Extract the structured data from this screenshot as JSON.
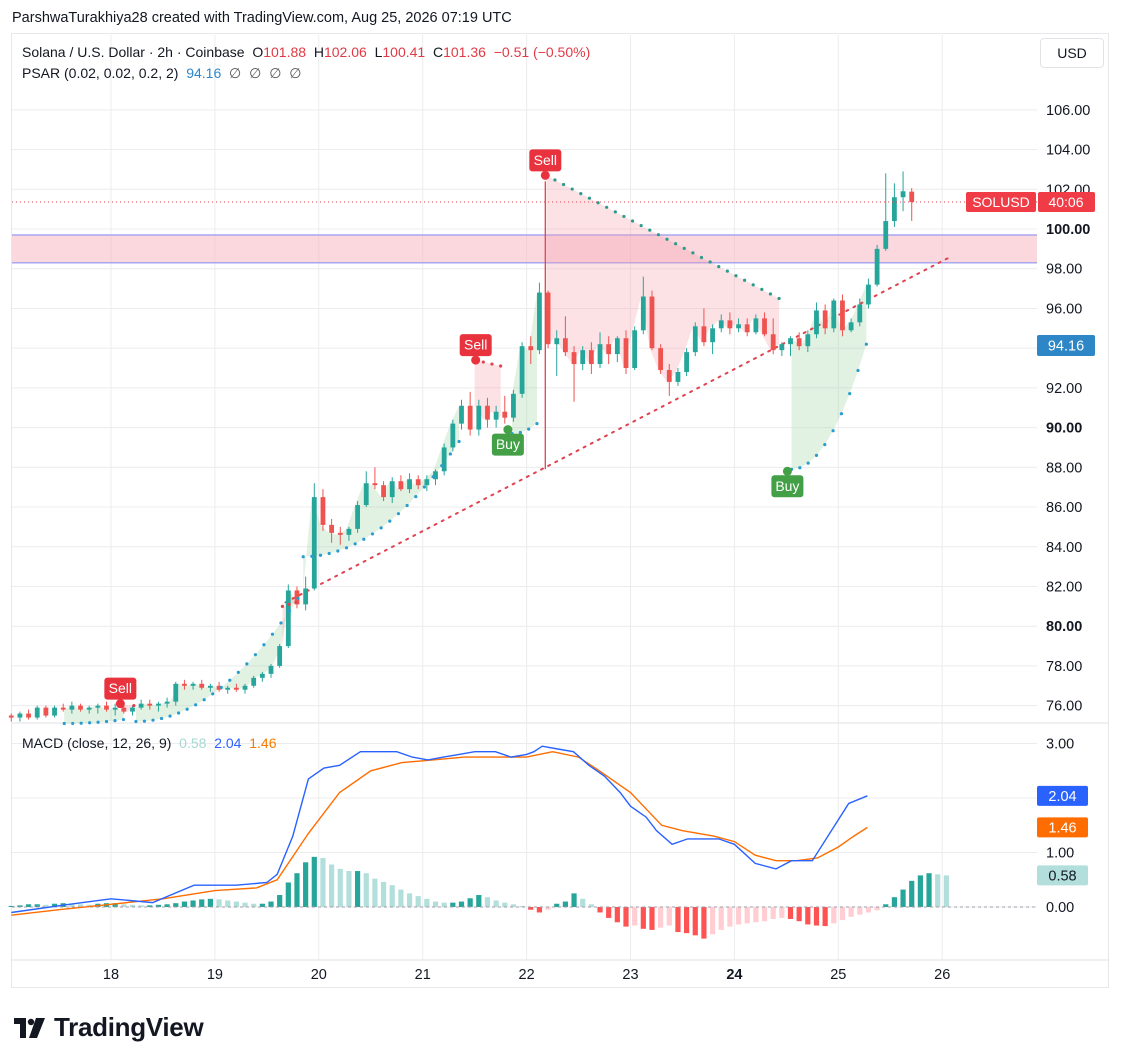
{
  "header": {
    "author": "ParshwaTurakhiya28",
    "created_text": "created with TradingView.com,",
    "timestamp": "Aug 25, 2026 07:19 UTC"
  },
  "legend": {
    "symbol": "Solana / U.S. Dollar · 2h · Coinbase",
    "o_label": "O",
    "o": "101.88",
    "h_label": "H",
    "h": "102.06",
    "l_label": "L",
    "l": "100.41",
    "c_label": "C",
    "c": "101.36",
    "change": "−0.51 (−0.50%)",
    "psar_label": "PSAR (0.02, 0.02, 0.2, 2)",
    "psar_value": "94.16",
    "psar_na": "∅ ∅ ∅ ∅",
    "macd_label": "MACD (close, 12, 26, 9)",
    "macd_hist": "0.58",
    "macd_line": "2.04",
    "macd_signal": "1.46"
  },
  "currency": "USD",
  "price_tag": {
    "symbol": "SOLUSD",
    "countdown": "40:06"
  },
  "psar_tag": "94.16",
  "macd_tags": {
    "macd": "2.04",
    "signal": "1.46",
    "hist": "0.58"
  },
  "brand": {
    "name": "TradingView",
    "logo_icon": "tradingview-logo-icon"
  },
  "colors": {
    "up": "#26a69a",
    "down": "#ef5350",
    "macd": "#2962ff",
    "signal": "#ff6d00",
    "psar_up": "#2a9dd0",
    "psar_down": "#e03a45",
    "zone": "#f7b6c2"
  },
  "chart_data": [
    {
      "type": "candlestick",
      "title": "Solana / U.S. Dollar · 2h · Coinbase",
      "x_ticks": [
        "18",
        "19",
        "20",
        "21",
        "22",
        "23",
        "24",
        "25",
        "26"
      ],
      "bold_x_ticks": [
        "24"
      ],
      "y_ticks": [
        "76.00",
        "78.00",
        "80.00",
        "82.00",
        "84.00",
        "86.00",
        "88.00",
        "90.00",
        "92.00",
        "94.00",
        "96.00",
        "98.00",
        "100.00",
        "102.00",
        "104.00",
        "106.00"
      ],
      "bold_y_ticks": [
        "80.00",
        "90.00",
        "100.00"
      ],
      "ylim": [
        75.3,
        107.3
      ],
      "xlim": [
        17.04,
        27.7
      ],
      "last_price": 101.36,
      "resistance_zone": [
        98.3,
        99.7
      ],
      "trendline": {
        "from": [
          19.68,
          81.2
        ],
        "to": [
          26.08,
          98.6
        ]
      },
      "candles": [
        [
          75.5,
          75.6,
          75.2,
          75.4
        ],
        [
          75.4,
          75.7,
          75.2,
          75.6
        ],
        [
          75.6,
          75.8,
          75.3,
          75.4
        ],
        [
          75.4,
          76.0,
          75.3,
          75.9
        ],
        [
          75.9,
          76.0,
          75.4,
          75.5
        ],
        [
          75.5,
          76.0,
          75.4,
          75.9
        ],
        [
          75.9,
          76.1,
          75.7,
          75.8
        ],
        [
          75.8,
          76.2,
          75.6,
          76.0
        ],
        [
          76.0,
          76.1,
          75.7,
          75.8
        ],
        [
          75.8,
          76.0,
          75.6,
          75.9
        ],
        [
          75.9,
          76.1,
          75.6,
          76.0
        ],
        [
          76.0,
          76.2,
          75.7,
          75.8
        ],
        [
          75.8,
          76.1,
          75.5,
          75.9
        ],
        [
          75.9,
          76.1,
          75.6,
          75.7
        ],
        [
          75.7,
          76.0,
          75.5,
          75.9
        ],
        [
          75.9,
          76.3,
          75.8,
          76.1
        ],
        [
          76.1,
          76.3,
          75.8,
          76.0
        ],
        [
          76.0,
          76.2,
          75.7,
          76.1
        ],
        [
          76.1,
          76.4,
          75.9,
          76.2
        ],
        [
          76.2,
          77.2,
          76.0,
          77.1
        ],
        [
          77.1,
          77.3,
          76.8,
          77.0
        ],
        [
          77.0,
          77.2,
          76.8,
          77.1
        ],
        [
          77.1,
          77.3,
          76.8,
          76.9
        ],
        [
          76.9,
          77.1,
          76.7,
          77.0
        ],
        [
          77.0,
          77.2,
          76.7,
          76.8
        ],
        [
          76.8,
          77.0,
          76.6,
          76.9
        ],
        [
          76.9,
          77.1,
          76.7,
          76.8
        ],
        [
          76.8,
          77.1,
          76.6,
          77.0
        ],
        [
          77.0,
          77.5,
          76.9,
          77.4
        ],
        [
          77.4,
          77.7,
          77.2,
          77.6
        ],
        [
          77.6,
          78.1,
          77.4,
          78.0
        ],
        [
          78.0,
          79.1,
          77.9,
          79.0
        ],
        [
          79.0,
          82.1,
          78.9,
          81.8
        ],
        [
          81.8,
          82.0,
          80.9,
          81.1
        ],
        [
          81.1,
          82.5,
          80.8,
          81.9
        ],
        [
          81.9,
          87.2,
          81.8,
          86.5
        ],
        [
          86.5,
          86.9,
          84.8,
          85.1
        ],
        [
          85.1,
          85.4,
          84.2,
          84.7
        ],
        [
          84.7,
          85.0,
          84.1,
          84.6
        ],
        [
          84.6,
          85.0,
          84.3,
          84.9
        ],
        [
          84.9,
          86.3,
          84.7,
          86.1
        ],
        [
          86.1,
          87.8,
          86.0,
          87.2
        ],
        [
          87.2,
          88.0,
          86.9,
          87.1
        ],
        [
          87.1,
          87.3,
          86.3,
          86.5
        ],
        [
          86.5,
          87.5,
          86.2,
          87.3
        ],
        [
          87.3,
          87.6,
          86.8,
          86.9
        ],
        [
          86.9,
          87.7,
          86.7,
          87.4
        ],
        [
          87.4,
          87.6,
          86.9,
          87.1
        ],
        [
          87.1,
          87.6,
          86.8,
          87.4
        ],
        [
          87.4,
          87.9,
          87.1,
          87.8
        ],
        [
          87.8,
          89.2,
          87.6,
          89.0
        ],
        [
          89.0,
          90.4,
          88.8,
          90.2
        ],
        [
          90.2,
          91.4,
          89.9,
          91.1
        ],
        [
          91.1,
          91.8,
          89.6,
          89.9
        ],
        [
          89.9,
          91.4,
          89.6,
          91.1
        ],
        [
          91.1,
          91.5,
          90.0,
          90.4
        ],
        [
          90.4,
          91.1,
          90.0,
          90.8
        ],
        [
          90.8,
          91.6,
          90.2,
          90.5
        ],
        [
          90.5,
          91.9,
          90.3,
          91.7
        ],
        [
          91.7,
          94.3,
          91.5,
          94.1
        ],
        [
          94.1,
          94.6,
          93.2,
          93.9
        ],
        [
          93.9,
          97.3,
          93.7,
          96.8
        ],
        [
          96.8,
          96.9,
          94.0,
          94.2
        ],
        [
          94.2,
          94.9,
          92.6,
          94.5
        ],
        [
          94.5,
          95.6,
          93.6,
          93.8
        ],
        [
          93.8,
          94.1,
          91.3,
          93.2
        ],
        [
          93.2,
          94.1,
          92.9,
          93.9
        ],
        [
          93.9,
          94.3,
          92.7,
          93.2
        ],
        [
          93.2,
          94.8,
          93.0,
          94.2
        ],
        [
          94.2,
          94.6,
          93.2,
          93.7
        ],
        [
          93.7,
          94.6,
          93.3,
          94.5
        ],
        [
          94.5,
          94.9,
          92.7,
          93.0
        ],
        [
          93.0,
          95.1,
          92.9,
          94.9
        ],
        [
          94.9,
          97.6,
          94.7,
          96.6
        ],
        [
          96.6,
          96.9,
          93.9,
          94.0
        ],
        [
          94.0,
          94.2,
          92.7,
          92.9
        ],
        [
          92.9,
          93.2,
          91.6,
          92.3
        ],
        [
          92.3,
          93.0,
          92.1,
          92.8
        ],
        [
          92.8,
          94.0,
          92.6,
          93.8
        ],
        [
          93.8,
          95.3,
          93.6,
          95.1
        ],
        [
          95.1,
          96.0,
          94.1,
          94.3
        ],
        [
          94.3,
          95.2,
          93.7,
          95.0
        ],
        [
          95.0,
          95.7,
          94.8,
          95.4
        ],
        [
          95.4,
          95.8,
          94.7,
          95.0
        ],
        [
          95.0,
          95.5,
          94.8,
          95.2
        ],
        [
          95.2,
          95.5,
          94.6,
          94.8
        ],
        [
          94.8,
          95.7,
          94.7,
          95.5
        ],
        [
          95.5,
          95.8,
          94.6,
          94.7
        ],
        [
          94.7,
          95.5,
          93.7,
          93.9
        ],
        [
          93.9,
          94.3,
          93.6,
          94.2
        ],
        [
          94.2,
          94.6,
          93.6,
          94.5
        ],
        [
          94.5,
          94.8,
          93.9,
          94.1
        ],
        [
          94.1,
          94.9,
          93.8,
          94.7
        ],
        [
          94.7,
          96.3,
          94.5,
          95.9
        ],
        [
          95.9,
          96.2,
          94.7,
          95.0
        ],
        [
          95.0,
          96.5,
          94.8,
          96.4
        ],
        [
          96.4,
          96.7,
          94.6,
          94.9
        ],
        [
          94.9,
          95.5,
          94.8,
          95.3
        ],
        [
          95.3,
          96.5,
          95.1,
          96.2
        ],
        [
          96.2,
          97.5,
          96.0,
          97.2
        ],
        [
          97.2,
          99.2,
          97.1,
          99.0
        ],
        [
          99.0,
          102.8,
          98.9,
          100.4
        ],
        [
          100.4,
          102.3,
          100.1,
          101.6
        ],
        [
          101.6,
          102.9,
          100.9,
          101.9
        ],
        [
          101.88,
          102.06,
          100.41,
          101.36
        ]
      ],
      "psar": {
        "segments": [
          {
            "dir": "up",
            "from": 17.55,
            "to": 18.12,
            "start": 75.1,
            "end": 75.3
          },
          {
            "dir": "down",
            "from": 18.1,
            "to": 18.22,
            "start": 76.05,
            "end": 76.0
          },
          {
            "dir": "up",
            "from": 18.24,
            "to": 19.8,
            "start": 75.2,
            "end": 81.4
          },
          {
            "dir": "down",
            "from": 19.65,
            "to": 19.78,
            "start": 81.0,
            "end": 81.2
          },
          {
            "dir": "up",
            "from": 19.85,
            "to": 21.35,
            "start": 83.5,
            "end": 89.3
          },
          {
            "dir": "down",
            "from": 21.5,
            "to": 21.75,
            "start": 93.4,
            "end": 93.1
          },
          {
            "dir": "up",
            "from": 21.86,
            "to": 22.1,
            "start": 89.7,
            "end": 90.2
          },
          {
            "dir": "down",
            "from": 22.19,
            "to": 24.43,
            "start": 102.7,
            "end": 96.5
          },
          {
            "dir": "up",
            "from": 24.55,
            "to": 25.27,
            "start": 87.9,
            "end": 94.2
          }
        ],
        "signals": [
          {
            "label": "Sell",
            "x": 18.09,
            "price": 76.1
          },
          {
            "label": "Sell",
            "x": 21.51,
            "price": 93.4
          },
          {
            "label": "Buy",
            "x": 21.82,
            "price": 89.9
          },
          {
            "label": "Sell",
            "x": 22.18,
            "price": 102.7
          },
          {
            "label": "Buy",
            "x": 24.51,
            "price": 87.8
          }
        ]
      }
    },
    {
      "type": "macd",
      "title": "MACD (close, 12, 26, 9)",
      "y_ticks": [
        "0.00",
        "1.00",
        "2.00",
        "3.00"
      ],
      "ylim": [
        -0.65,
        3.35
      ],
      "macd_line": [
        [
          17.04,
          -0.1
        ],
        [
          17.6,
          0.05
        ],
        [
          18.0,
          0.15
        ],
        [
          18.4,
          0.08
        ],
        [
          18.8,
          0.4
        ],
        [
          19.2,
          0.4
        ],
        [
          19.5,
          0.45
        ],
        [
          19.6,
          0.6
        ],
        [
          19.75,
          1.3
        ],
        [
          19.9,
          2.35
        ],
        [
          20.05,
          2.55
        ],
        [
          20.2,
          2.6
        ],
        [
          20.4,
          2.85
        ],
        [
          20.55,
          2.85
        ],
        [
          20.75,
          2.85
        ],
        [
          20.9,
          2.75
        ],
        [
          21.05,
          2.7
        ],
        [
          21.2,
          2.75
        ],
        [
          21.35,
          2.8
        ],
        [
          21.5,
          2.85
        ],
        [
          21.7,
          2.85
        ],
        [
          21.85,
          2.75
        ],
        [
          22.0,
          2.8
        ],
        [
          22.07,
          2.85
        ],
        [
          22.15,
          2.95
        ],
        [
          22.3,
          2.9
        ],
        [
          22.45,
          2.85
        ],
        [
          22.6,
          2.6
        ],
        [
          22.75,
          2.4
        ],
        [
          22.9,
          2.1
        ],
        [
          23.0,
          1.85
        ],
        [
          23.15,
          1.65
        ],
        [
          23.25,
          1.4
        ],
        [
          23.4,
          1.15
        ],
        [
          23.55,
          1.25
        ],
        [
          23.7,
          1.25
        ],
        [
          23.85,
          1.25
        ],
        [
          24.0,
          1.15
        ],
        [
          24.2,
          0.8
        ],
        [
          24.4,
          0.7
        ],
        [
          24.55,
          0.85
        ],
        [
          24.75,
          0.85
        ],
        [
          24.95,
          1.45
        ],
        [
          25.1,
          1.9
        ],
        [
          25.28,
          2.04
        ]
      ],
      "signal_line": [
        [
          17.04,
          -0.15
        ],
        [
          17.5,
          -0.05
        ],
        [
          18.0,
          0.05
        ],
        [
          18.5,
          0.15
        ],
        [
          19.0,
          0.3
        ],
        [
          19.4,
          0.35
        ],
        [
          19.6,
          0.5
        ],
        [
          19.9,
          1.35
        ],
        [
          20.2,
          2.1
        ],
        [
          20.5,
          2.5
        ],
        [
          20.8,
          2.65
        ],
        [
          21.1,
          2.7
        ],
        [
          21.4,
          2.75
        ],
        [
          21.7,
          2.75
        ],
        [
          22.0,
          2.75
        ],
        [
          22.25,
          2.85
        ],
        [
          22.5,
          2.75
        ],
        [
          22.7,
          2.5
        ],
        [
          23.0,
          2.1
        ],
        [
          23.3,
          1.5
        ],
        [
          23.5,
          1.4
        ],
        [
          23.8,
          1.3
        ],
        [
          24.0,
          1.2
        ],
        [
          24.2,
          0.95
        ],
        [
          24.4,
          0.85
        ],
        [
          24.6,
          0.85
        ],
        [
          24.8,
          0.9
        ],
        [
          25.0,
          1.1
        ],
        [
          25.15,
          1.3
        ],
        [
          25.28,
          1.46
        ]
      ],
      "histogram": [
        0.02,
        0.03,
        0.05,
        0.05,
        0.04,
        0.06,
        0.07,
        0.06,
        0.05,
        0.04,
        0.06,
        0.07,
        0.07,
        0.05,
        0.04,
        0.03,
        0.03,
        0.04,
        0.05,
        0.07,
        0.1,
        0.12,
        0.14,
        0.15,
        0.14,
        0.12,
        0.1,
        0.08,
        0.06,
        0.06,
        0.1,
        0.22,
        0.45,
        0.62,
        0.82,
        0.92,
        0.9,
        0.78,
        0.7,
        0.66,
        0.66,
        0.62,
        0.52,
        0.46,
        0.4,
        0.32,
        0.25,
        0.2,
        0.15,
        0.1,
        0.08,
        0.08,
        0.1,
        0.16,
        0.22,
        0.18,
        0.12,
        0.08,
        0.05,
        0.02,
        -0.05,
        -0.1,
        -0.05,
        0.06,
        0.1,
        0.25,
        0.15,
        0.05,
        -0.1,
        -0.2,
        -0.28,
        -0.36,
        -0.34,
        -0.4,
        -0.42,
        -0.38,
        -0.34,
        -0.46,
        -0.48,
        -0.52,
        -0.58,
        -0.5,
        -0.42,
        -0.36,
        -0.32,
        -0.3,
        -0.28,
        -0.26,
        -0.22,
        -0.2,
        -0.22,
        -0.26,
        -0.32,
        -0.34,
        -0.35,
        -0.3,
        -0.24,
        -0.18,
        -0.14,
        -0.1,
        -0.06,
        0.05,
        0.18,
        0.32,
        0.48,
        0.58,
        0.62,
        0.6,
        0.58
      ]
    }
  ]
}
